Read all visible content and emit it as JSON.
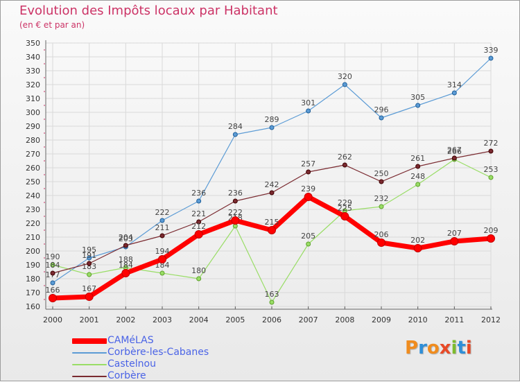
{
  "header": {
    "title": "Evolution des Impôts locaux par Habitant",
    "subtitle": "(en € et par an)"
  },
  "logo": {
    "text": "Proxiti",
    "letters": [
      "P",
      "r",
      "o",
      "x",
      "i",
      "t",
      "i"
    ],
    "colors": [
      "#f08c1e",
      "#2f8fd8",
      "#f08c1e",
      "#e84a27",
      "#7dbb2e",
      "#2f8fd8",
      "#e84a27"
    ]
  },
  "chart_data": {
    "type": "line",
    "title": "Evolution des Impôts locaux par Habitant",
    "subtitle": "(en € et par an)",
    "categories": [
      "2000",
      "2001",
      "2002",
      "2003",
      "2004",
      "2005",
      "2006",
      "2007",
      "2008",
      "2009",
      "2010",
      "2011",
      "2012"
    ],
    "ylim": [
      160,
      350
    ],
    "yticks": [
      160,
      170,
      180,
      190,
      200,
      210,
      220,
      230,
      240,
      250,
      260,
      270,
      280,
      290,
      300,
      310,
      320,
      330,
      340,
      350
    ],
    "grid": true,
    "legend_position": "bottom-left",
    "series": [
      {
        "name": "CAMéLAS",
        "color": "#ff0000",
        "emphasis": true,
        "values": [
          166,
          167,
          184,
          194,
          212,
          222,
          215,
          239,
          225,
          206,
          202,
          207,
          209
        ]
      },
      {
        "name": "Corbère-les-Cabanes",
        "color": "#5b9bd5",
        "emphasis": false,
        "values": [
          177,
          195,
          203,
          222,
          236,
          284,
          289,
          301,
          320,
          296,
          305,
          314,
          339
        ]
      },
      {
        "name": "Castelnou",
        "color": "#99dd66",
        "emphasis": false,
        "values": [
          190,
          183,
          188,
          184,
          180,
          218,
          163,
          205,
          229,
          232,
          248,
          266,
          253
        ]
      },
      {
        "name": "Corbère",
        "color": "#7a2a30",
        "emphasis": false,
        "values": [
          184,
          191,
          204,
          211,
          221,
          236,
          242,
          257,
          262,
          250,
          261,
          267,
          272
        ]
      }
    ]
  }
}
